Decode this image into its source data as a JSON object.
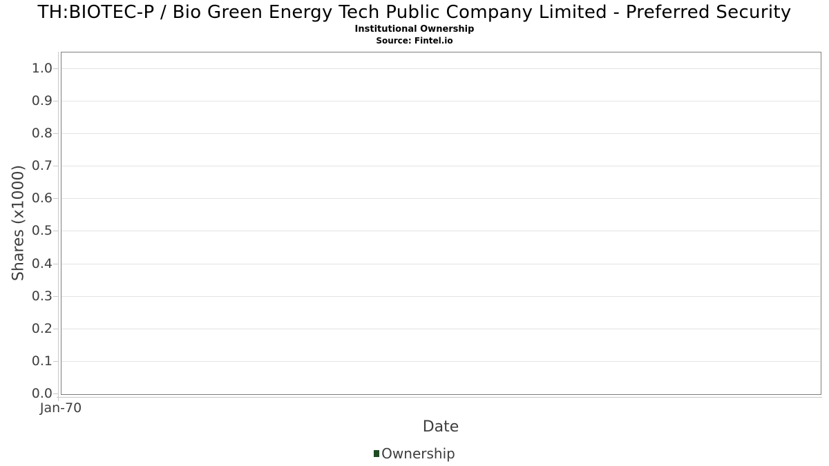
{
  "page": {
    "title": "TH:BIOTEC-P / Bio Green Energy Tech Public Company Limited - Preferred Security",
    "subtitle": "Institutional Ownership",
    "source": "Source: Fintel.io"
  },
  "chart_data": {
    "type": "line",
    "title": "TH:BIOTEC-P / Bio Green Energy Tech Public Company Limited - Preferred Security",
    "subtitle": "Institutional Ownership",
    "source": "Source: Fintel.io",
    "xlabel": "Date",
    "ylabel": "Shares (x1000)",
    "xticks": [
      {
        "label": "Jan-70",
        "frac": 0
      }
    ],
    "yticks": [
      "0.0",
      "0.1",
      "0.2",
      "0.3",
      "0.4",
      "0.5",
      "0.6",
      "0.7",
      "0.8",
      "0.9",
      "1.0"
    ],
    "ylim": [
      0,
      1.053
    ],
    "grid": true,
    "legend_position": "bottom",
    "series": [
      {
        "name": "Ownership",
        "color": "#1e4a24",
        "x": [],
        "values": []
      }
    ]
  },
  "legend": {
    "items": [
      {
        "label": "Ownership",
        "color": "#1e4a24"
      }
    ]
  },
  "colors": {
    "legend_green": "#1e4a24",
    "gridline": "#e3e3e3",
    "axis_line": "#c8c8c8",
    "plot_border": "#7d7d7d",
    "tick_text": "#3d3d3d"
  }
}
